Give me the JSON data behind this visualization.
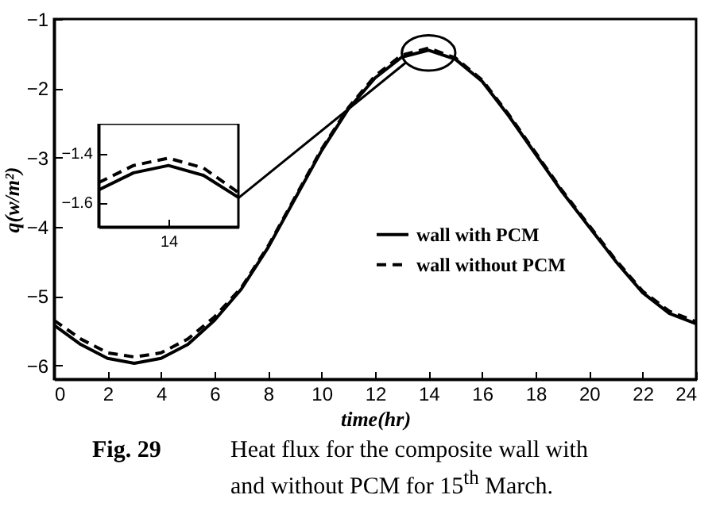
{
  "chart_data": [
    {
      "type": "line",
      "xlabel": "time(hr)",
      "ylabel": "q(w/m²)",
      "x": [
        0,
        1,
        2,
        3,
        4,
        5,
        6,
        7,
        8,
        9,
        10,
        11,
        12,
        13,
        14,
        15,
        16,
        17,
        18,
        19,
        20,
        21,
        22,
        23,
        24
      ],
      "series": [
        {
          "name": "wall with PCM",
          "color": "#000000",
          "line_style": "solid",
          "values": [
            -5.42,
            -5.7,
            -5.9,
            -5.97,
            -5.9,
            -5.7,
            -5.35,
            -4.9,
            -4.3,
            -3.6,
            -2.9,
            -2.3,
            -1.85,
            -1.55,
            -1.45,
            -1.58,
            -1.9,
            -2.4,
            -2.95,
            -3.5,
            -4.0,
            -4.5,
            -4.95,
            -5.25,
            -5.4
          ]
        },
        {
          "name": "wall without PCM",
          "color": "#000000",
          "line_style": "dashed",
          "values": [
            -5.35,
            -5.62,
            -5.82,
            -5.88,
            -5.82,
            -5.62,
            -5.3,
            -4.88,
            -4.28,
            -3.58,
            -2.88,
            -2.28,
            -1.82,
            -1.52,
            -1.42,
            -1.56,
            -1.88,
            -2.38,
            -2.93,
            -3.48,
            -3.98,
            -4.48,
            -4.93,
            -5.22,
            -5.37
          ]
        }
      ],
      "xlim": [
        0,
        24
      ],
      "ylim": [
        -6.2,
        -1
      ],
      "xticks": [
        0,
        2,
        4,
        6,
        8,
        10,
        12,
        14,
        16,
        18,
        20,
        22,
        24
      ],
      "yticks": [
        -6,
        -5,
        -4,
        -3,
        -2,
        -1
      ],
      "legend": "right",
      "annotations": [
        "Fig. 29",
        "Heat flux for the composite wall with and without PCM for 15$^{th}$ March."
      ]
    },
    {
      "type": "line",
      "categories": [
        null,
        null,
        "14",
        null,
        null
      ],
      "series": [
        {
          "color": "#000000",
          "line_style": "solid",
          "values": [
            -1.55,
            -1.48,
            -1.45,
            -1.49,
            -1.58
          ]
        },
        {
          "color": "#000000",
          "line_style": "dashed",
          "values": [
            -1.52,
            -1.45,
            -1.42,
            -1.46,
            -1.56
          ]
        }
      ],
      "ylim": [
        -1.7,
        -1.28
      ],
      "yticks": [
        -1.6,
        -1.4
      ]
    }
  ]
}
